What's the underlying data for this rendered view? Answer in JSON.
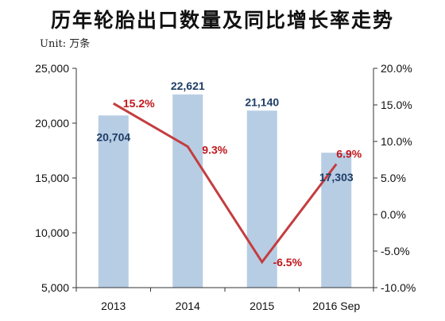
{
  "chart_data": {
    "type": "bar",
    "title": "历年轮胎出口数量及同比增长率走势",
    "unit_label": "Unit: 万条",
    "categories": [
      "2013",
      "2014",
      "2015",
      "2016 Sep"
    ],
    "series": [
      {
        "type": "bar",
        "axis": "left",
        "values": [
          20704,
          22621,
          21140,
          17303
        ]
      },
      {
        "type": "line",
        "axis": "right",
        "values": [
          15.2,
          9.3,
          -6.5,
          6.9
        ]
      }
    ],
    "bar_labels": [
      "20,704",
      "22,621",
      "21,140",
      "17,303"
    ],
    "line_labels": [
      "15.2%",
      "9.3%",
      "-6.5%",
      "6.9%"
    ],
    "y_left": {
      "ylim": [
        5000,
        25000
      ],
      "ticks": [
        5000,
        10000,
        15000,
        20000,
        25000
      ],
      "tick_labels": [
        "5,000",
        "10,000",
        "15,000",
        "20,000",
        "25,000"
      ]
    },
    "y_right": {
      "ylim": [
        -10,
        20
      ],
      "ticks": [
        -10,
        -5,
        0,
        5,
        10,
        15,
        20
      ],
      "tick_labels": [
        "-10.0%",
        "-5.0%",
        "0.0%",
        "5.0%",
        "10.0%",
        "15.0%",
        "20.0%"
      ]
    },
    "grid": false,
    "legend": "none",
    "colors": {
      "bar": "#b7cde4",
      "line": "#c43d3f",
      "bar_label": "#1f3d66",
      "line_label": "#c0161c"
    }
  }
}
